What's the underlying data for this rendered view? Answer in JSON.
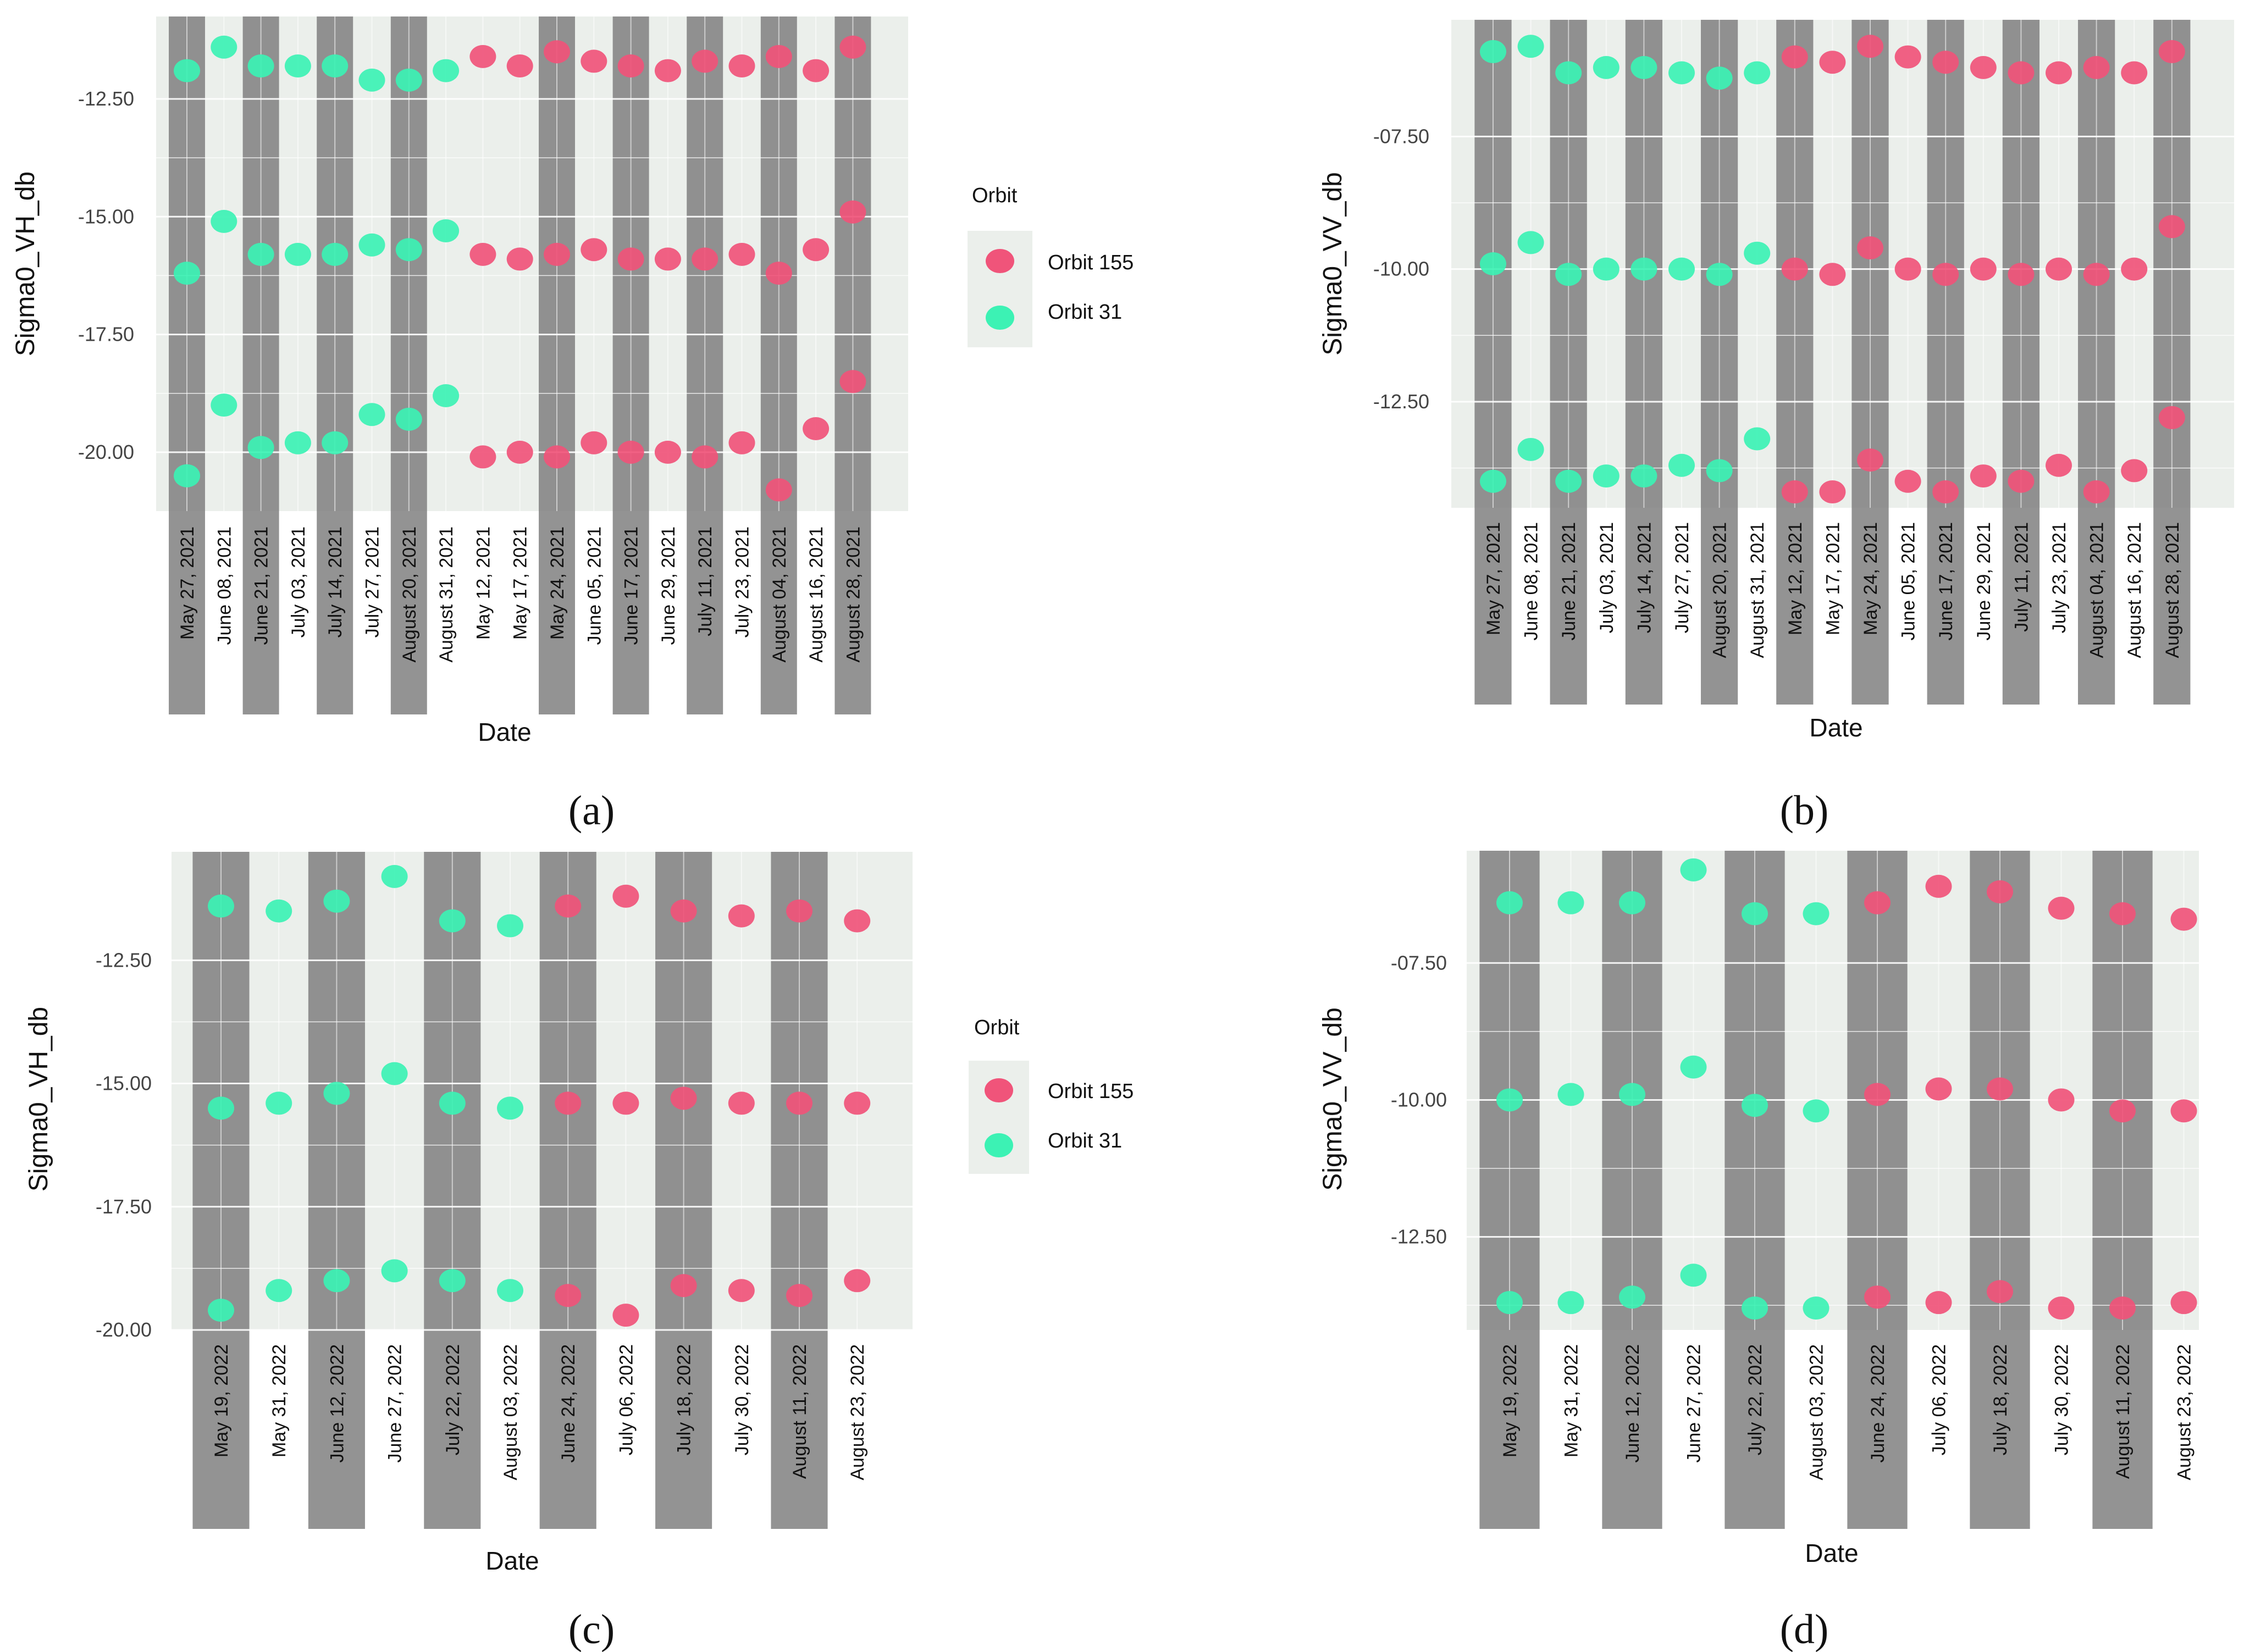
{
  "colors": {
    "orbit155": "#f0547a",
    "orbit31": "#3cf2b4",
    "panel_bg": "#ebefeb",
    "stripe": "#7b7b7b",
    "grid": "#ffffff"
  },
  "chart_data": [
    {
      "id": "a",
      "type": "scatter",
      "caption": "(a)",
      "title": "",
      "xlabel": "Date",
      "ylabel": "Sigma0_VH_db",
      "yticks": [
        "-12.50",
        "-15.00",
        "-17.50",
        "-20.00"
      ],
      "ytick_values": [
        -12.5,
        -15.0,
        -17.5,
        -20.0
      ],
      "ylim": [
        -21.25,
        -10.75
      ],
      "categories": [
        "May 27, 2021",
        "June 08, 2021",
        "June 21, 2021",
        "July 03, 2021",
        "July 14, 2021",
        "July 27, 2021",
        "August 20, 2021",
        "August 31, 2021",
        "May 12, 2021",
        "May 17, 2021",
        "May 24, 2021",
        "June 05, 2021",
        "June 17, 2021",
        "June 29, 2021",
        "July 11, 2021",
        "July 23, 2021",
        "August 04, 2021",
        "August 16, 2021",
        "August 28, 2021"
      ],
      "orbit": [
        31,
        31,
        31,
        31,
        31,
        31,
        31,
        31,
        155,
        155,
        155,
        155,
        155,
        155,
        155,
        155,
        155,
        155,
        155
      ],
      "shaded": [
        0,
        2,
        4,
        6,
        10,
        12,
        14,
        16,
        18
      ],
      "legend": {
        "title": "Orbit",
        "entries": [
          "Orbit 155",
          "Orbit 31"
        ]
      },
      "series": [
        {
          "name": "upper",
          "values": [
            -11.9,
            -11.4,
            -11.8,
            -11.8,
            -11.8,
            -12.1,
            -12.1,
            -11.9,
            -11.6,
            -11.8,
            -11.5,
            -11.7,
            -11.8,
            -11.9,
            -11.7,
            -11.8,
            -11.6,
            -11.9,
            -11.4
          ]
        },
        {
          "name": "middle",
          "values": [
            -16.2,
            -15.1,
            -15.8,
            -15.8,
            -15.8,
            -15.6,
            -15.7,
            -15.3,
            -15.8,
            -15.9,
            -15.8,
            -15.7,
            -15.9,
            -15.9,
            -15.9,
            -15.8,
            -16.2,
            -15.7,
            -14.9
          ]
        },
        {
          "name": "lower",
          "values": [
            -20.5,
            -19.0,
            -19.9,
            -19.8,
            -19.8,
            -19.2,
            -19.3,
            -18.8,
            -20.1,
            -20.0,
            -20.1,
            -19.8,
            -20.0,
            -20.0,
            -20.1,
            -19.8,
            -20.8,
            -19.5,
            -18.5
          ]
        }
      ]
    },
    {
      "id": "b",
      "type": "scatter",
      "caption": "(b)",
      "title": "",
      "xlabel": "Date",
      "ylabel": "Sigma0_VV_db",
      "yticks": [
        "-07.50",
        "-10.00",
        "-12.50"
      ],
      "ytick_values": [
        -7.5,
        -10.0,
        -12.5
      ],
      "ylim": [
        -14.5,
        -5.3
      ],
      "categories": [
        "May 27, 2021",
        "June 08, 2021",
        "June 21, 2021",
        "July 03, 2021",
        "July 14, 2021",
        "July 27, 2021",
        "August 20, 2021",
        "August 31, 2021",
        "May 12, 2021",
        "May 17, 2021",
        "May 24, 2021",
        "June 05, 2021",
        "June 17, 2021",
        "June 29, 2021",
        "July 11, 2021",
        "July 23, 2021",
        "August 04, 2021",
        "August 16, 2021",
        "August 28, 2021"
      ],
      "orbit": [
        31,
        31,
        31,
        31,
        31,
        31,
        31,
        31,
        155,
        155,
        155,
        155,
        155,
        155,
        155,
        155,
        155,
        155,
        155
      ],
      "shaded": [
        0,
        2,
        4,
        6,
        8,
        10,
        12,
        14,
        16,
        18
      ],
      "series": [
        {
          "name": "upper",
          "values": [
            -5.9,
            -5.8,
            -6.3,
            -6.2,
            -6.2,
            -6.3,
            -6.4,
            -6.3,
            -6.0,
            -6.1,
            -5.8,
            -6.0,
            -6.1,
            -6.2,
            -6.3,
            -6.3,
            -6.2,
            -6.3,
            -5.9
          ]
        },
        {
          "name": "middle",
          "values": [
            -9.9,
            -9.5,
            -10.1,
            -10.0,
            -10.0,
            -10.0,
            -10.1,
            -9.7,
            -10.0,
            -10.1,
            -9.6,
            -10.0,
            -10.1,
            -10.0,
            -10.1,
            -10.0,
            -10.1,
            -10.0,
            -9.2
          ]
        },
        {
          "name": "lower",
          "values": [
            -14.0,
            -13.4,
            -14.0,
            -13.9,
            -13.9,
            -13.7,
            -13.8,
            -13.2,
            -14.2,
            -14.2,
            -13.6,
            -14.0,
            -14.2,
            -13.9,
            -14.0,
            -13.7,
            -14.2,
            -13.8,
            -12.8
          ]
        }
      ]
    },
    {
      "id": "c",
      "type": "scatter",
      "caption": "(c)",
      "title": "",
      "xlabel": "Date",
      "ylabel": "Sigma0_VH_db",
      "yticks": [
        "-12.50",
        "-15.00",
        "-17.50",
        "-20.00"
      ],
      "ytick_values": [
        -12.5,
        -15.0,
        -17.5,
        -20.0
      ],
      "ylim": [
        -20.0,
        -10.3
      ],
      "categories": [
        "May 19, 2022",
        "May 31, 2022",
        "June 12, 2022",
        "June 27, 2022",
        "July 22, 2022",
        "August 03, 2022",
        "June 24, 2022",
        "July 06, 2022",
        "July 18, 2022",
        "July 30, 2022",
        "August 11, 2022",
        "August 23, 2022"
      ],
      "orbit": [
        31,
        31,
        31,
        31,
        31,
        31,
        155,
        155,
        155,
        155,
        155,
        155
      ],
      "shaded": [
        0,
        2,
        4,
        6,
        8,
        10
      ],
      "legend": {
        "title": "Orbit",
        "entries": [
          "Orbit 155",
          "Orbit 31"
        ]
      },
      "series": [
        {
          "name": "upper",
          "values": [
            -11.4,
            -11.5,
            -11.3,
            -10.8,
            -11.7,
            -11.8,
            -11.4,
            -11.2,
            -11.5,
            -11.6,
            -11.5,
            -11.7
          ]
        },
        {
          "name": "middle",
          "values": [
            -15.5,
            -15.4,
            -15.2,
            -14.8,
            -15.4,
            -15.5,
            -15.4,
            -15.4,
            -15.3,
            -15.4,
            -15.4,
            -15.4
          ]
        },
        {
          "name": "lower",
          "values": [
            -19.6,
            -19.2,
            -19.0,
            -18.8,
            -19.0,
            -19.2,
            -19.3,
            -19.7,
            -19.1,
            -19.2,
            -19.3,
            -19.0
          ]
        }
      ]
    },
    {
      "id": "d",
      "type": "scatter",
      "caption": "(d)",
      "title": "",
      "xlabel": "Date",
      "ylabel": "Sigma0_VV_db",
      "yticks": [
        "-07.50",
        "-10.00",
        "-12.50"
      ],
      "ytick_values": [
        -7.5,
        -10.0,
        -12.5
      ],
      "ylim": [
        -14.2,
        -5.45
      ],
      "categories": [
        "May 19, 2022",
        "May 31, 2022",
        "June 12, 2022",
        "June 27, 2022",
        "July 22, 2022",
        "August 03, 2022",
        "June 24, 2022",
        "July 06, 2022",
        "July 18, 2022",
        "July 30, 2022",
        "August 11, 2022",
        "August 23, 2022"
      ],
      "orbit": [
        31,
        31,
        31,
        31,
        31,
        31,
        155,
        155,
        155,
        155,
        155,
        155
      ],
      "shaded": [
        0,
        2,
        4,
        6,
        8,
        10
      ],
      "series": [
        {
          "name": "upper",
          "values": [
            -6.4,
            -6.4,
            -6.4,
            -5.8,
            -6.6,
            -6.6,
            -6.4,
            -6.1,
            -6.2,
            -6.5,
            -6.6,
            -6.7
          ]
        },
        {
          "name": "middle",
          "values": [
            -10.0,
            -9.9,
            -9.9,
            -9.4,
            -10.1,
            -10.2,
            -9.9,
            -9.8,
            -9.8,
            -10.0,
            -10.2,
            -10.2
          ]
        },
        {
          "name": "lower",
          "values": [
            -13.7,
            -13.7,
            -13.6,
            -13.2,
            -13.8,
            -13.8,
            -13.6,
            -13.7,
            -13.5,
            -13.8,
            -13.8,
            -13.7
          ]
        }
      ]
    }
  ]
}
